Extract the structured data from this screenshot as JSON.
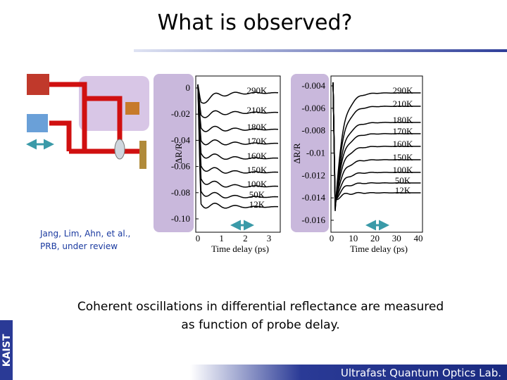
{
  "title": "What is observed?",
  "citation": [
    "Jang, Lim, Ahn, et al.,",
    "PRB, under review"
  ],
  "figures": [
    {
      "ylabel": "ΔR/R",
      "xlabel": "Time delay (ps)",
      "yticks": [
        "0",
        "-0.02",
        "-0.04",
        "-0.06",
        "-0.08",
        "-0.10"
      ],
      "xticks": [
        "0",
        "1",
        "2",
        "3"
      ],
      "series": [
        "290K",
        "210K",
        "180K",
        "170K",
        "160K",
        "150K",
        "100K",
        "50K",
        "12K"
      ]
    },
    {
      "ylabel": "ΔR/R",
      "xlabel": "Time delay (ps)",
      "yticks": [
        "-0.004",
        "-0.006",
        "-0.008",
        "-0.01",
        "-0.012",
        "-0.014",
        "-0.016"
      ],
      "xticks": [
        "0",
        "10",
        "20",
        "30",
        "40"
      ],
      "series": [
        "290K",
        "210K",
        "180K",
        "170K",
        "160K",
        "150K",
        "100K",
        "50K",
        "12K"
      ]
    }
  ],
  "caption": [
    "Coherent oscillations in differential reflectance are measured",
    "as function of probe delay."
  ],
  "side_logo": "KAIST",
  "footer": "Ultrafast Quantum Optics Lab."
}
